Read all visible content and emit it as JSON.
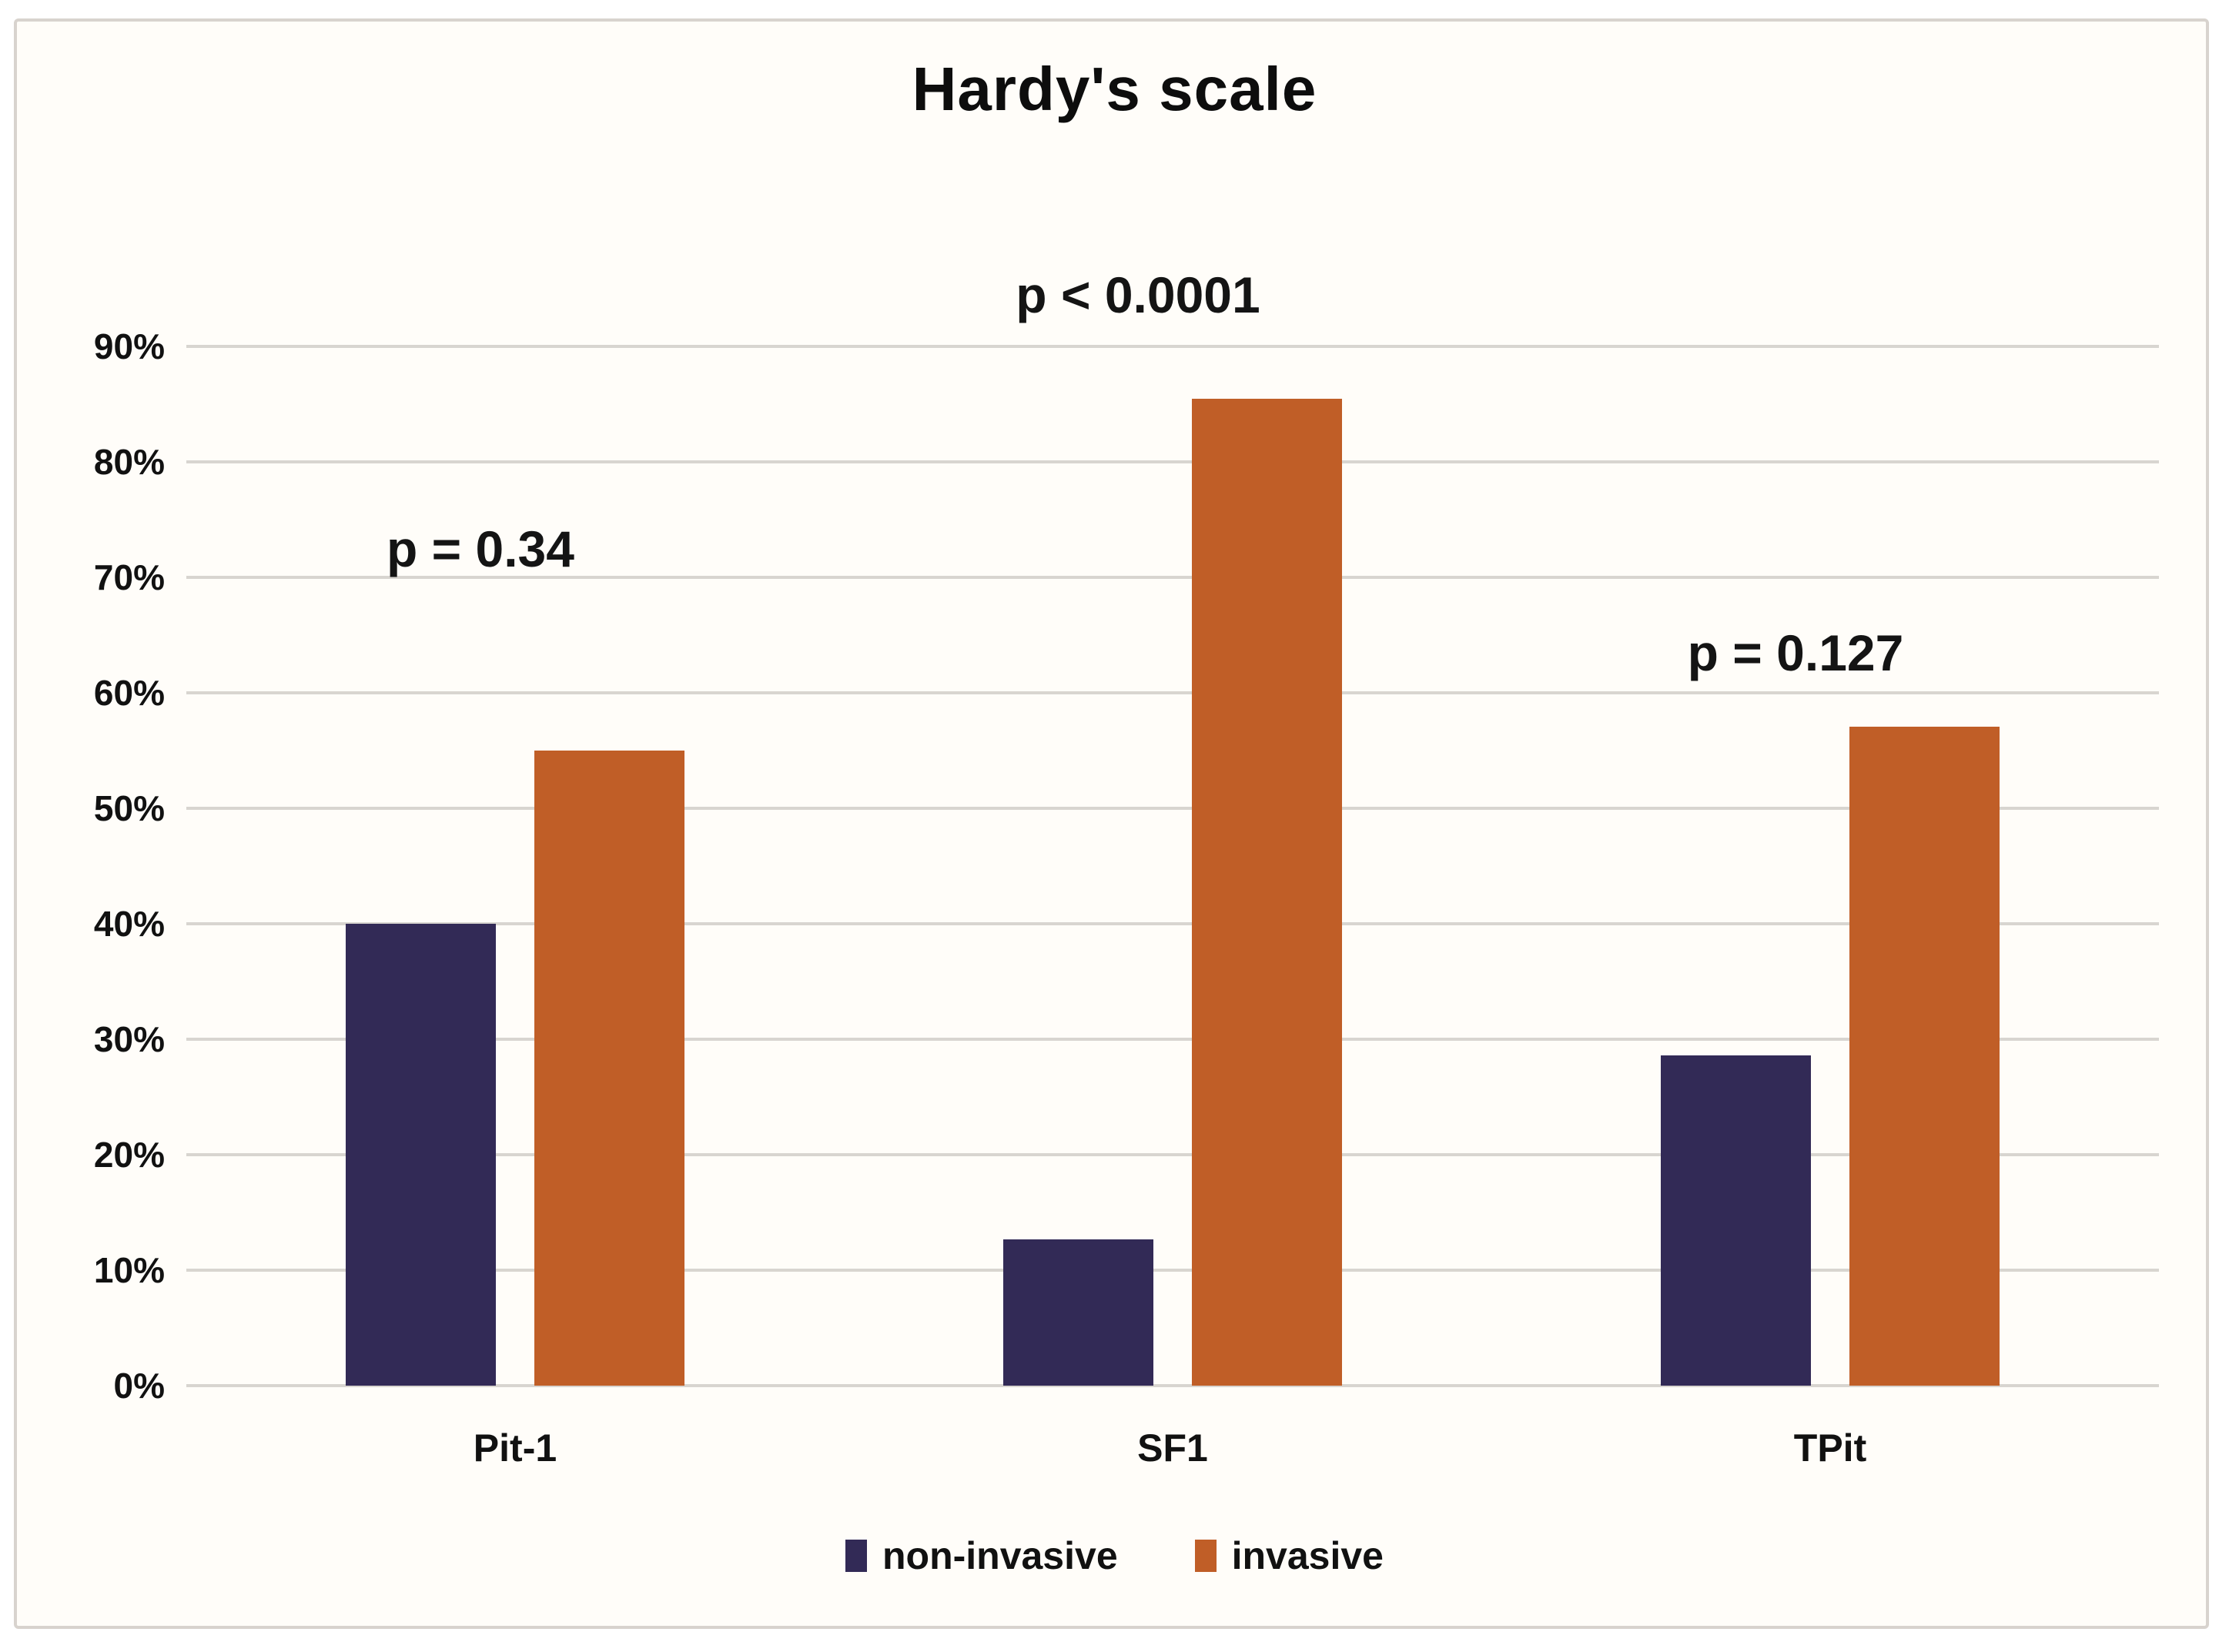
{
  "figure": {
    "title": "Hardy's scale"
  },
  "chart_data": {
    "type": "bar",
    "title": "Hardy's scale",
    "categories": [
      "Pit-1",
      "SF1",
      "TPit"
    ],
    "series": [
      {
        "name": "non-invasive",
        "color": "#322a56",
        "values": [
          40,
          12.7,
          28.6
        ]
      },
      {
        "name": "invasive",
        "color": "#c05e27",
        "values": [
          55,
          85.5,
          57.1
        ]
      }
    ],
    "annotations": [
      {
        "category": "Pit-1",
        "text": "p = 0.34",
        "y": 72.5
      },
      {
        "category": "SF1",
        "text": "p < 0.0001",
        "y": 94.5
      },
      {
        "category": "TPit",
        "text": "p = 0.127",
        "y": 63.5
      }
    ],
    "yticks": [
      "0%",
      "10%",
      "20%",
      "30%",
      "40%",
      "50%",
      "60%",
      "70%",
      "80%",
      "90%"
    ],
    "ylim": [
      0,
      90
    ],
    "unit": "%",
    "grid": true,
    "gridline_color": "#d8d5d0",
    "legend_position": "bottom",
    "legend": [
      "non-invasive",
      "invasive"
    ]
  }
}
